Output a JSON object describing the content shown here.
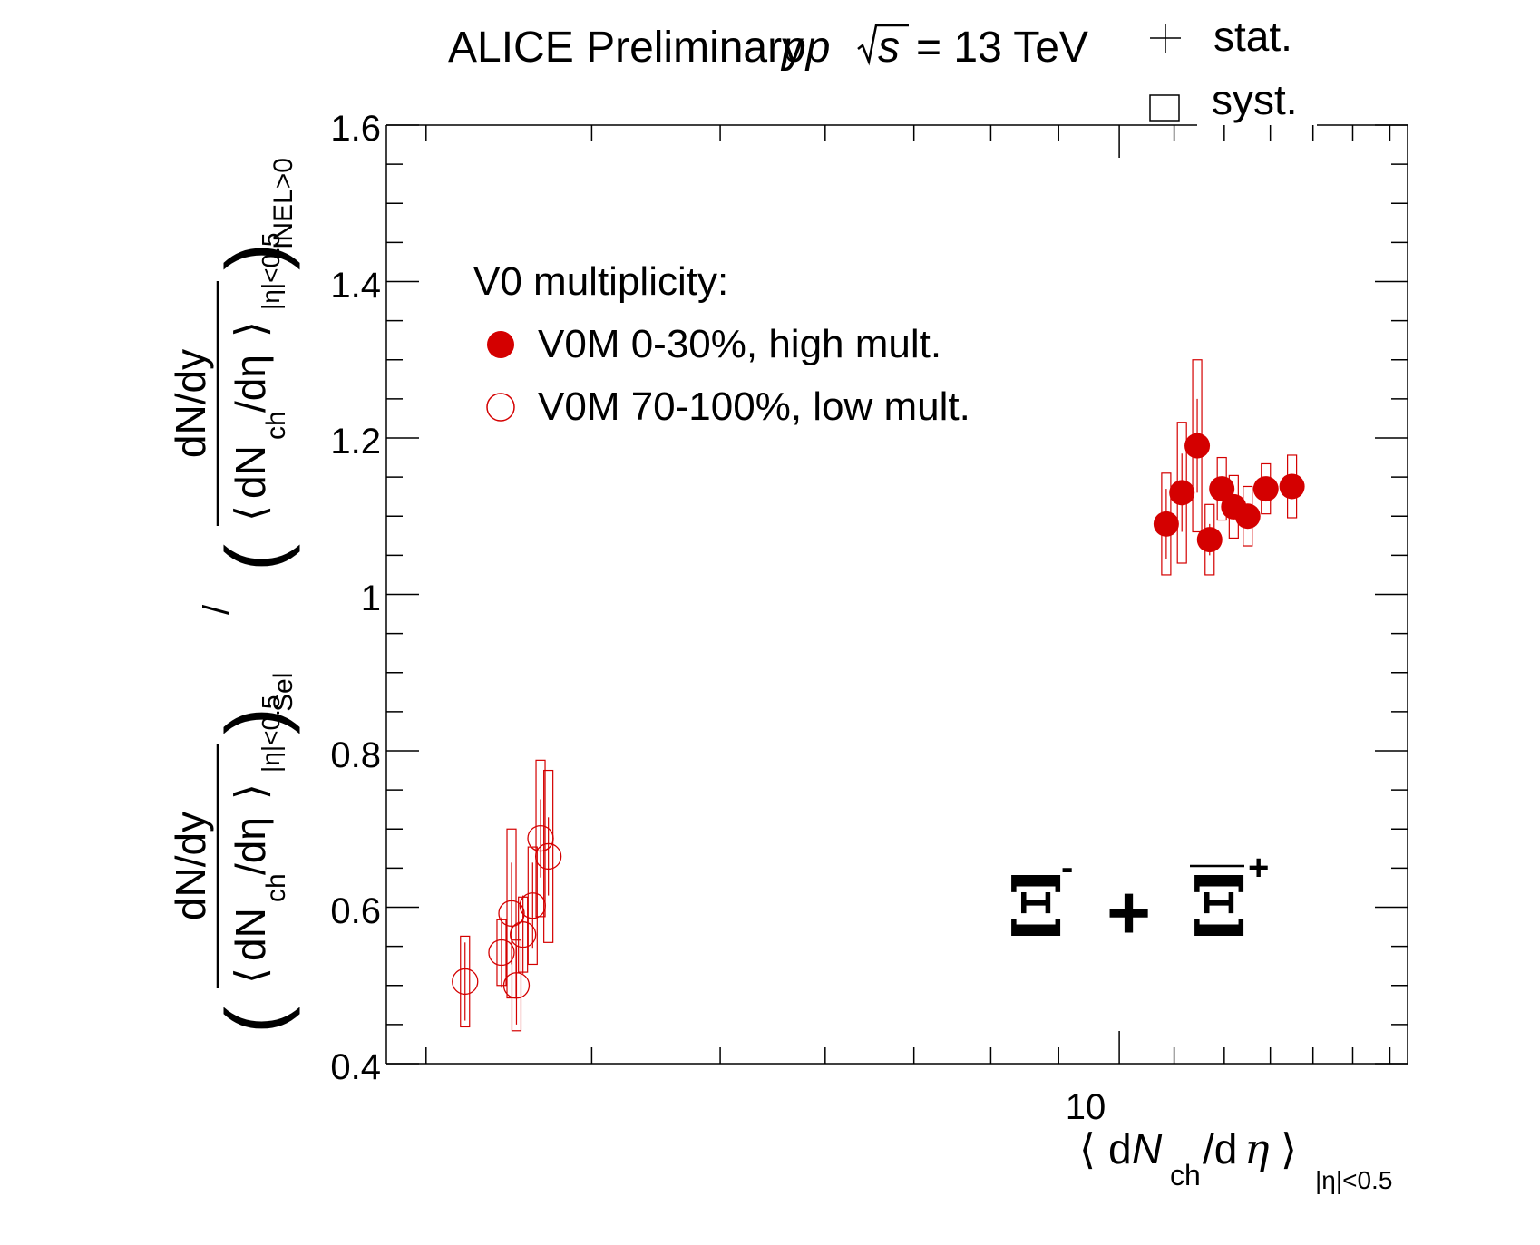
{
  "header": {
    "experiment": "ALICE Preliminary",
    "system": "pp",
    "sqrt_s": "s",
    "energy": "= 13 TeV"
  },
  "uncertainty_legend": {
    "stat": "stat.",
    "syst": "syst."
  },
  "legend": {
    "title": "V0 multiplicity:",
    "entries": [
      {
        "label": "V0M 0-30%, high mult.",
        "marker": "filled-circle"
      },
      {
        "label": "V0M 70-100%, low mult.",
        "marker": "open-circle"
      }
    ],
    "placement": "top-left"
  },
  "particle_label": {
    "xi": "Ξ",
    "minus": "-",
    "plus_sign": "+",
    "antixi": "Ξ",
    "plus_charge": "+"
  },
  "axes": {
    "x": {
      "label_d1": "d",
      "label_N": "N",
      "label_sub": "ch",
      "label_d2": "/d",
      "label_eta": "η",
      "label_range": "|η|<0.5",
      "tick_label": "10",
      "scale": "log"
    },
    "y": {
      "frac_num": "dN/dy",
      "frac_den_a": "dN",
      "frac_den_sub": "ch",
      "frac_den_b": "/dη",
      "range_sub": "|η|<0.5",
      "sel_sub": "Sel",
      "slash": "/",
      "inel_sub": "INEL>0",
      "ticks": [
        "0.4",
        "0.6",
        "0.8",
        "1",
        "1.2",
        "1.4",
        "1.6"
      ]
    }
  },
  "colors": {
    "series": "#d40000",
    "axis": "#000000"
  },
  "chart_data": {
    "type": "scatter",
    "title": "ALICE Preliminary pp √s = 13 TeV",
    "xlabel": "⟨ dNch/dη ⟩ |η|<0.5",
    "ylabel": "(dN/dy / ⟨dNch/dη⟩|η|<0.5)Sel / (dN/dy / ⟨dNch/dη⟩|η|<0.5)INEL>0",
    "xlim": [
      2.8,
      16.5
    ],
    "xscale": "log",
    "ylim": [
      0.4,
      1.6
    ],
    "grid": false,
    "series": [
      {
        "name": "V0M 0-30%, high mult.",
        "marker": "filled",
        "points": [
          {
            "x": 10.85,
            "y": 1.09,
            "stat": 0.045,
            "syst": 0.065
          },
          {
            "x": 11.15,
            "y": 1.13,
            "stat": 0.05,
            "syst": 0.09
          },
          {
            "x": 11.45,
            "y": 1.19,
            "stat": 0.06,
            "syst": 0.11
          },
          {
            "x": 11.7,
            "y": 1.07,
            "stat": 0.02,
            "syst": 0.045
          },
          {
            "x": 11.95,
            "y": 1.135,
            "stat": 0.015,
            "syst": 0.04
          },
          {
            "x": 12.2,
            "y": 1.112,
            "stat": 0.015,
            "syst": 0.04
          },
          {
            "x": 12.5,
            "y": 1.1,
            "stat": 0.015,
            "syst": 0.038
          },
          {
            "x": 12.9,
            "y": 1.135,
            "stat": 0.015,
            "syst": 0.032
          },
          {
            "x": 13.5,
            "y": 1.138,
            "stat": 0.015,
            "syst": 0.04
          }
        ]
      },
      {
        "name": "V0M 70-100%, low mult.",
        "marker": "open",
        "points": [
          {
            "x": 3.21,
            "y": 0.505,
            "stat": 0.05,
            "syst": 0.058
          },
          {
            "x": 3.42,
            "y": 0.542,
            "stat": 0.045,
            "syst": 0.042
          },
          {
            "x": 3.48,
            "y": 0.592,
            "stat": 0.065,
            "syst": 0.108
          },
          {
            "x": 3.51,
            "y": 0.5,
            "stat": 0.05,
            "syst": 0.058
          },
          {
            "x": 3.55,
            "y": 0.565,
            "stat": 0.05,
            "syst": 0.048
          },
          {
            "x": 3.61,
            "y": 0.602,
            "stat": 0.055,
            "syst": 0.075
          },
          {
            "x": 3.66,
            "y": 0.688,
            "stat": 0.05,
            "syst": 0.1
          },
          {
            "x": 3.71,
            "y": 0.665,
            "stat": 0.05,
            "syst": 0.11
          }
        ]
      }
    ]
  }
}
